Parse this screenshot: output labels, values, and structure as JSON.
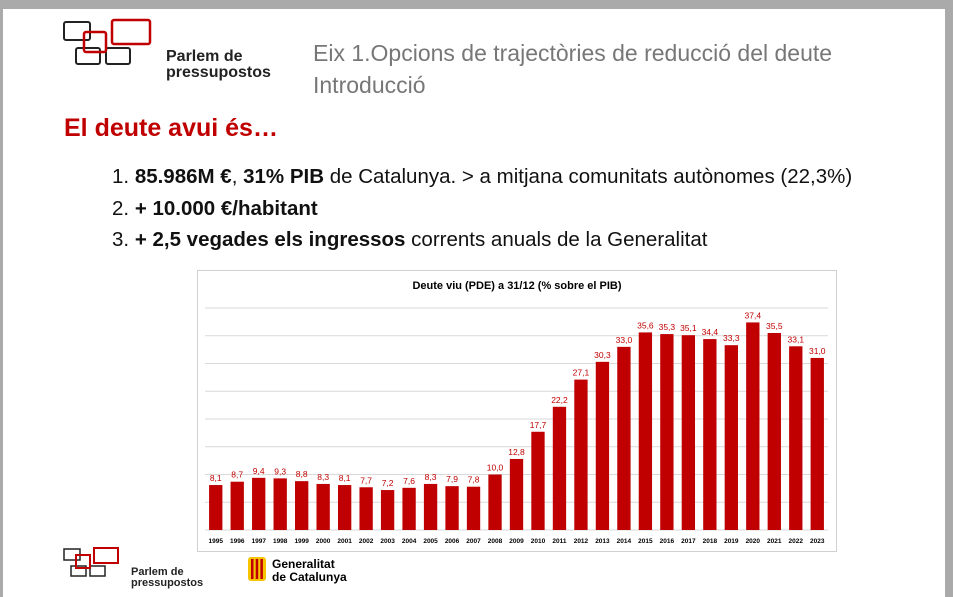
{
  "logo": {
    "line1": "Parlem de",
    "line2": "pressupostos"
  },
  "header": {
    "title": "Eix 1.Opcions de trajectòries de reducció del deute",
    "subtitle": "Introducció"
  },
  "heading": "El deute avui és…",
  "items": [
    {
      "number": "1.",
      "parts": [
        {
          "text": "85.986M €",
          "bold": true
        },
        {
          "text": ", ",
          "bold": false
        },
        {
          "text": "31% PIB",
          "bold": true
        },
        {
          "text": " de Catalunya. > a mitjana comunitats autònomes (22,3%)",
          "bold": false
        }
      ]
    },
    {
      "number": "2.",
      "parts": [
        {
          "text": "+ 10.000 €/habitant",
          "bold": true
        }
      ]
    },
    {
      "number": "3.",
      "parts": [
        {
          "text": "+ 2,5 vegades els ingressos",
          "bold": true
        },
        {
          "text": " corrents anuals de la Generalitat",
          "bold": false
        }
      ]
    }
  ],
  "chart_data": {
    "type": "bar",
    "title": "Deute viu (PDE) a 31/12 (% sobre el PIB)",
    "categories": [
      "1995",
      "1996",
      "1997",
      "1998",
      "1999",
      "2000",
      "2001",
      "2002",
      "2003",
      "2004",
      "2005",
      "2006",
      "2007",
      "2008",
      "2009",
      "2010",
      "2011",
      "2012",
      "2013",
      "2014",
      "2015",
      "2016",
      "2017",
      "2018",
      "2019",
      "2020",
      "2021",
      "2022",
      "2023"
    ],
    "values": [
      8.1,
      8.7,
      9.4,
      9.3,
      8.8,
      8.3,
      8.1,
      7.7,
      7.2,
      7.6,
      8.3,
      7.9,
      7.8,
      10.0,
      12.8,
      17.7,
      22.2,
      27.1,
      30.3,
      33.0,
      35.6,
      35.3,
      35.1,
      34.4,
      33.3,
      37.4,
      35.5,
      33.1,
      31.0
    ],
    "value_labels": [
      "8,1",
      "8,7",
      "9,4",
      "9,3",
      "8,8",
      "8,3",
      "8,1",
      "7,7",
      "7,2",
      "7,6",
      "8,3",
      "7,9",
      "7,8",
      "10,0",
      "12,8",
      "17,7",
      "22,2",
      "27,1",
      "30,3",
      "33,0",
      "35,6",
      "35,3",
      "35,1",
      "34,4",
      "33,3",
      "37,4",
      "35,5",
      "33,1",
      "31,0"
    ],
    "color": "#c00000",
    "ylim": [
      0,
      40
    ],
    "yticks": [
      0,
      5,
      10,
      15,
      20,
      25,
      30,
      35,
      40
    ],
    "grid": true
  },
  "footer": {
    "org1": "Generalitat",
    "org2": "de Catalunya"
  }
}
